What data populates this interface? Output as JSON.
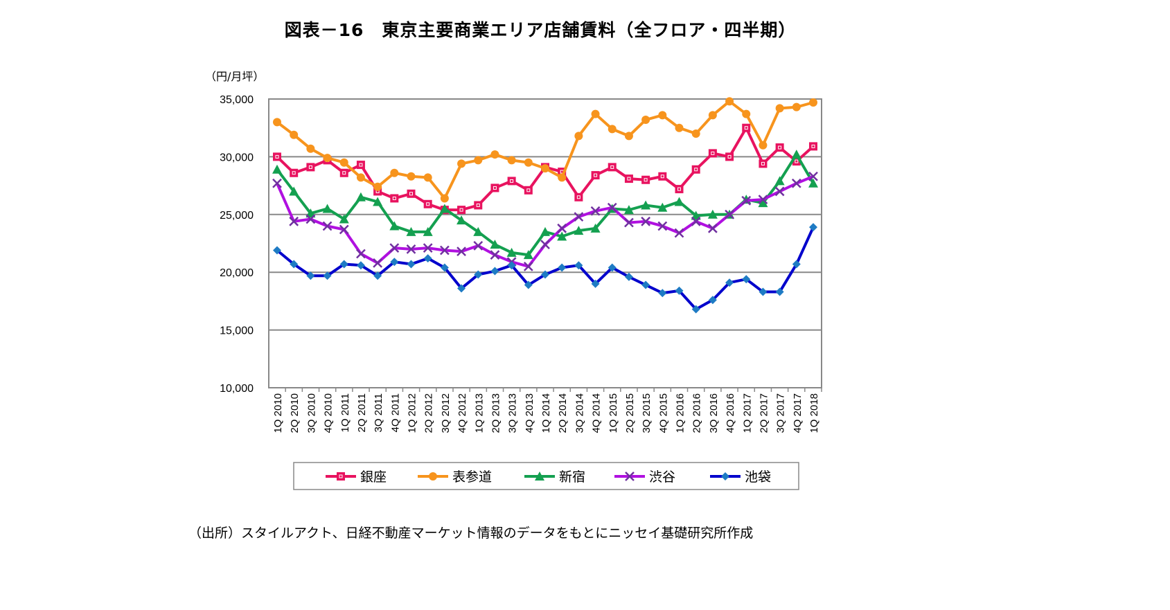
{
  "chart_data": {
    "type": "line",
    "title": "図表－16　東京主要商業エリア店舗賃料（全フロア・四半期）",
    "ylabel": "（円/月坪）",
    "xlabel": "",
    "ylim": [
      10000,
      35000
    ],
    "yticks": [
      10000,
      15000,
      20000,
      25000,
      30000,
      35000
    ],
    "ytick_labels": [
      "10,000",
      "15,000",
      "20,000",
      "25,000",
      "30,000",
      "35,000"
    ],
    "grid": "horizontal",
    "legend": "bottom",
    "categories": [
      "1Q 2010",
      "2Q 2010",
      "3Q 2010",
      "4Q 2010",
      "1Q 2011",
      "2Q 2011",
      "3Q 2011",
      "4Q 2011",
      "1Q 2012",
      "2Q 2012",
      "3Q 2012",
      "4Q 2012",
      "1Q 2013",
      "2Q 2013",
      "3Q 2013",
      "4Q 2013",
      "1Q 2014",
      "2Q 2014",
      "3Q 2014",
      "4Q 2014",
      "1Q 2015",
      "2Q 2015",
      "3Q 2015",
      "4Q 2015",
      "1Q 2016",
      "2Q 2016",
      "3Q 2016",
      "4Q 2016",
      "1Q 2017",
      "2Q 2017",
      "3Q 2017",
      "4Q 2017",
      "1Q 2018"
    ],
    "series": [
      {
        "name": "銀座",
        "color": "#E8135F",
        "marker": "square",
        "values": [
          30000,
          28600,
          29100,
          29700,
          28600,
          29300,
          27000,
          26400,
          26800,
          25900,
          25400,
          25400,
          25800,
          27300,
          27900,
          27100,
          29100,
          28700,
          26500,
          28400,
          29100,
          28100,
          28000,
          28300,
          27200,
          28900,
          30300,
          30000,
          32500,
          29400,
          30800,
          29600,
          30900
        ]
      },
      {
        "name": "表参道",
        "color": "#F7941D",
        "marker": "circle",
        "values": [
          33000,
          31900,
          30700,
          29900,
          29500,
          28200,
          27400,
          28600,
          28300,
          28200,
          26400,
          29400,
          29700,
          30200,
          29700,
          29500,
          29000,
          28200,
          31800,
          33700,
          32400,
          31800,
          33200,
          33600,
          32500,
          32000,
          33600,
          34800,
          33700,
          31000,
          34200,
          34300,
          34700
        ]
      },
      {
        "name": "新宿",
        "color": "#14A050",
        "marker": "triangle",
        "values": [
          28900,
          27000,
          25100,
          25500,
          24600,
          26500,
          26100,
          24000,
          23500,
          23500,
          25500,
          24500,
          23500,
          22400,
          21700,
          21500,
          23500,
          23100,
          23600,
          23800,
          25500,
          25400,
          25800,
          25600,
          26100,
          24900,
          25000,
          25000,
          26300,
          26000,
          27900,
          30200,
          27700
        ]
      },
      {
        "name": "渋谷",
        "color": "#B010E0",
        "marker_color": "#7030A0",
        "marker": "x",
        "values": [
          27700,
          24400,
          24600,
          24000,
          23700,
          21600,
          20800,
          22100,
          22000,
          22100,
          21900,
          21800,
          22300,
          21500,
          20900,
          20500,
          22400,
          23800,
          24800,
          25300,
          25600,
          24300,
          24400,
          24000,
          23400,
          24400,
          23800,
          25000,
          26200,
          26300,
          27000,
          27700,
          28300
        ]
      },
      {
        "name": "池袋",
        "color": "#0000CC",
        "marker_color": "#1E7BC4",
        "marker": "diamond",
        "values": [
          21900,
          20700,
          19700,
          19700,
          20700,
          20600,
          19700,
          20900,
          20700,
          21200,
          20400,
          18600,
          19800,
          20100,
          20600,
          18900,
          19800,
          20400,
          20600,
          19000,
          20400,
          19600,
          18900,
          18200,
          18400,
          16800,
          17600,
          19100,
          19400,
          18300,
          18300,
          20700,
          23900
        ]
      }
    ]
  },
  "caption": "（出所）スタイルアクト、日経不動産マーケット情報のデータをもとにニッセイ基礎研究所作成"
}
